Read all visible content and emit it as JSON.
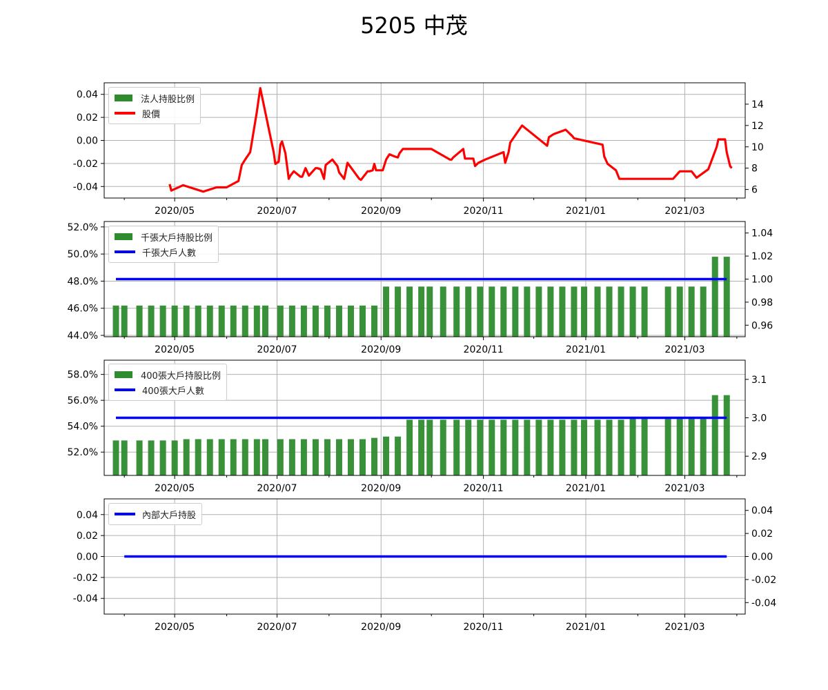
{
  "figure": {
    "title": "5205 中茂"
  },
  "colors": {
    "bar": "#2e8b2e",
    "price_line": "#ff0000",
    "holder_line": "#0000ff",
    "grid": "#b0b0b0"
  },
  "chart_data": [
    {
      "type": "bar",
      "panel": "institutional",
      "legend": [
        {
          "label": "法人持股比例",
          "kind": "bar"
        },
        {
          "label": "股價",
          "kind": "line"
        }
      ],
      "y_left": {
        "range": [
          -0.05,
          0.05
        ],
        "ticks": [
          "0.04",
          "0.02",
          "0.00",
          "-0.02",
          "-0.04"
        ]
      },
      "y_right": {
        "range": [
          5.2,
          16.0
        ],
        "ticks": [
          "14",
          "12",
          "10",
          "8",
          "6"
        ]
      },
      "x_ticks": [
        "2020/05",
        "2020/07",
        "2020/09",
        "2020/11",
        "2021/01",
        "2021/03"
      ],
      "bars": [],
      "price": {
        "dates": [
          "2020-04-28",
          "2020-04-29",
          "2020-05-06",
          "2020-05-18",
          "2020-05-26",
          "2020-06-01",
          "2020-06-08",
          "2020-06-10",
          "2020-06-12",
          "2020-06-15",
          "2020-06-19",
          "2020-06-20",
          "2020-06-21",
          "2020-06-29",
          "2020-06-30",
          "2020-07-02",
          "2020-07-03",
          "2020-07-04",
          "2020-07-06",
          "2020-07-08",
          "2020-07-09",
          "2020-07-11",
          "2020-07-15",
          "2020-07-16",
          "2020-07-18",
          "2020-07-20",
          "2020-07-24",
          "2020-07-25",
          "2020-07-27",
          "2020-07-29",
          "2020-07-30",
          "2020-08-03",
          "2020-08-06",
          "2020-08-07",
          "2020-08-10",
          "2020-08-12",
          "2020-08-19",
          "2020-08-20",
          "2020-08-24",
          "2020-08-25",
          "2020-08-27",
          "2020-08-28",
          "2020-08-29",
          "2020-08-31",
          "2020-09-02",
          "2020-09-04",
          "2020-09-06",
          "2020-09-09",
          "2020-09-11",
          "2020-09-12",
          "2020-09-14",
          "2020-09-16",
          "2020-09-19",
          "2020-09-22",
          "2020-09-25",
          "2020-10-01",
          "2020-10-12",
          "2020-10-13",
          "2020-10-14",
          "2020-10-20",
          "2020-10-21",
          "2020-10-22",
          "2020-10-26",
          "2020-10-27",
          "2020-10-29",
          "2020-11-02",
          "2020-11-13",
          "2020-11-14",
          "2020-11-16",
          "2020-11-17",
          "2020-11-24",
          "2020-12-09",
          "2020-12-10",
          "2020-12-13",
          "2020-12-20",
          "2020-12-24",
          "2020-12-25",
          "2021-01-11",
          "2021-01-12",
          "2021-01-14",
          "2021-01-19",
          "2021-01-21",
          "2021-01-22",
          "2021-02-21",
          "2021-02-22",
          "2021-02-26",
          "2021-02-27",
          "2021-03-05",
          "2021-03-08",
          "2021-03-15",
          "2021-03-16",
          "2021-03-20",
          "2021-03-21",
          "2021-03-25",
          "2021-03-26",
          "2021-03-28",
          "2021-03-29"
        ],
        "values": [
          6.5,
          5.9,
          6.4,
          5.8,
          6.2,
          6.2,
          6.8,
          8.3,
          8.8,
          9.5,
          13.3,
          14.4,
          15.5,
          9.5,
          8.4,
          8.6,
          10.2,
          10.5,
          9.4,
          7.0,
          7.3,
          7.7,
          7.2,
          7.2,
          8.0,
          7.3,
          8.0,
          8.0,
          7.9,
          7.0,
          8.3,
          8.8,
          8.2,
          7.6,
          7.0,
          8.5,
          7.0,
          6.9,
          7.7,
          7.7,
          7.8,
          8.4,
          7.8,
          7.8,
          7.8,
          8.8,
          9.3,
          9.1,
          9.0,
          9.4,
          9.8,
          9.8,
          9.8,
          9.8,
          9.8,
          9.8,
          8.8,
          8.8,
          9.0,
          9.8,
          8.9,
          8.9,
          8.9,
          8.2,
          8.5,
          8.8,
          9.5,
          8.5,
          9.5,
          10.4,
          12.0,
          10.1,
          10.9,
          11.2,
          11.6,
          11.0,
          10.8,
          10.2,
          9.1,
          8.4,
          7.8,
          7.0,
          7.0,
          7.0,
          7.0,
          7.7,
          7.7,
          7.7,
          7.1,
          7.9,
          8.3,
          10.0,
          10.7,
          10.7,
          9.5,
          8.2,
          8.0
        ]
      }
    },
    {
      "type": "bar",
      "panel": "1000-lot holders",
      "legend": [
        {
          "label": "千張大戶持股比例",
          "kind": "bar"
        },
        {
          "label": "千張大戶人數",
          "kind": "line"
        }
      ],
      "y_left": {
        "range": [
          43.9,
          52.4
        ],
        "ticks": [
          "52.0%",
          "50.0%",
          "48.0%",
          "46.0%",
          "44.0%"
        ]
      },
      "y_right": {
        "range": [
          0.95,
          1.05
        ],
        "ticks": [
          "1.04",
          "1.02",
          "1.00",
          "0.98",
          "0.96"
        ]
      },
      "x_ticks": [
        "2020/05",
        "2020/07",
        "2020/09",
        "2020/11",
        "2021/01",
        "2021/03"
      ],
      "bars": {
        "dates": [
          "2020-03-27",
          "2020-04-01",
          "2020-04-10",
          "2020-04-17",
          "2020-04-24",
          "2020-05-01",
          "2020-05-08",
          "2020-05-15",
          "2020-05-22",
          "2020-05-29",
          "2020-06-05",
          "2020-06-12",
          "2020-06-19",
          "2020-06-24",
          "2020-07-03",
          "2020-07-10",
          "2020-07-17",
          "2020-07-24",
          "2020-07-31",
          "2020-08-07",
          "2020-08-14",
          "2020-08-21",
          "2020-08-28",
          "2020-09-04",
          "2020-09-11",
          "2020-09-18",
          "2020-09-25",
          "2020-09-30",
          "2020-10-08",
          "2020-10-16",
          "2020-10-23",
          "2020-10-30",
          "2020-11-06",
          "2020-11-13",
          "2020-11-20",
          "2020-11-27",
          "2020-12-04",
          "2020-12-11",
          "2020-12-18",
          "2020-12-25",
          "2020-12-31",
          "2021-01-08",
          "2021-01-15",
          "2021-01-22",
          "2021-01-29",
          "2021-02-05",
          "2021-02-19",
          "2021-02-26",
          "2021-03-05",
          "2021-03-12",
          "2021-03-19",
          "2021-03-26"
        ],
        "values": [
          46.2,
          46.2,
          46.2,
          46.2,
          46.2,
          46.2,
          46.2,
          46.2,
          46.2,
          46.2,
          46.2,
          46.2,
          46.2,
          46.2,
          46.2,
          46.2,
          46.2,
          46.2,
          46.2,
          46.2,
          46.2,
          46.2,
          46.2,
          47.6,
          47.6,
          47.6,
          47.6,
          47.6,
          47.6,
          47.6,
          47.6,
          47.6,
          47.6,
          47.6,
          47.6,
          47.6,
          47.6,
          47.6,
          47.6,
          47.6,
          47.6,
          47.6,
          47.6,
          47.6,
          47.6,
          47.6,
          47.6,
          47.6,
          47.6,
          47.6,
          49.8,
          49.8
        ]
      },
      "line": {
        "dates": [
          "2020-03-27",
          "2021-03-26"
        ],
        "values": [
          1.0,
          1.0
        ]
      }
    },
    {
      "type": "bar",
      "panel": "400-lot holders",
      "legend": [
        {
          "label": "400張大戶持股比例",
          "kind": "bar"
        },
        {
          "label": "400張大戶人數",
          "kind": "line"
        }
      ],
      "y_left": {
        "range": [
          50.2,
          59.1
        ],
        "ticks": [
          "58.0%",
          "56.0%",
          "54.0%",
          "52.0%"
        ]
      },
      "y_right": {
        "range": [
          2.85,
          3.15
        ],
        "ticks": [
          "3.1",
          "3.0",
          "2.9"
        ]
      },
      "x_ticks": [
        "2020/05",
        "2020/07",
        "2020/09",
        "2020/11",
        "2021/01",
        "2021/03"
      ],
      "bars": {
        "dates": [
          "2020-03-27",
          "2020-04-01",
          "2020-04-10",
          "2020-04-17",
          "2020-04-24",
          "2020-05-01",
          "2020-05-08",
          "2020-05-15",
          "2020-05-22",
          "2020-05-29",
          "2020-06-05",
          "2020-06-12",
          "2020-06-19",
          "2020-06-24",
          "2020-07-03",
          "2020-07-10",
          "2020-07-17",
          "2020-07-24",
          "2020-07-31",
          "2020-08-07",
          "2020-08-14",
          "2020-08-21",
          "2020-08-28",
          "2020-09-04",
          "2020-09-11",
          "2020-09-18",
          "2020-09-25",
          "2020-09-30",
          "2020-10-08",
          "2020-10-16",
          "2020-10-23",
          "2020-10-30",
          "2020-11-06",
          "2020-11-13",
          "2020-11-20",
          "2020-11-27",
          "2020-12-04",
          "2020-12-11",
          "2020-12-18",
          "2020-12-25",
          "2020-12-31",
          "2021-01-08",
          "2021-01-15",
          "2021-01-22",
          "2021-01-29",
          "2021-02-05",
          "2021-02-19",
          "2021-02-26",
          "2021-03-05",
          "2021-03-12",
          "2021-03-19",
          "2021-03-26"
        ],
        "values": [
          52.9,
          52.9,
          52.9,
          52.9,
          52.9,
          52.9,
          53.0,
          53.0,
          53.0,
          53.0,
          53.0,
          53.0,
          53.0,
          53.0,
          53.0,
          53.0,
          53.0,
          53.0,
          53.0,
          53.0,
          53.0,
          53.0,
          53.1,
          53.2,
          53.2,
          54.5,
          54.5,
          54.5,
          54.5,
          54.5,
          54.5,
          54.5,
          54.5,
          54.5,
          54.5,
          54.5,
          54.5,
          54.5,
          54.5,
          54.5,
          54.5,
          54.5,
          54.5,
          54.5,
          54.6,
          54.6,
          54.6,
          54.6,
          54.6,
          54.6,
          56.4,
          56.4
        ]
      },
      "line": {
        "dates": [
          "2020-03-27",
          "2021-03-26"
        ],
        "values": [
          3.0,
          3.0
        ]
      }
    },
    {
      "type": "line",
      "panel": "insiders",
      "legend": [
        {
          "label": "內部大戶持股",
          "kind": "line"
        }
      ],
      "y_left": {
        "range": [
          -0.055,
          0.055
        ],
        "ticks": [
          "0.04",
          "0.02",
          "0.00",
          "-0.02",
          "-0.04"
        ]
      },
      "y_right": {
        "range": [
          -0.05,
          0.05
        ],
        "ticks": [
          "0.04",
          "0.02",
          "0.00",
          "-0.02",
          "-0.04"
        ]
      },
      "x_ticks": [
        "2020/05",
        "2020/07",
        "2020/09",
        "2020/11",
        "2021/01",
        "2021/03"
      ],
      "bars": [],
      "line": {
        "dates": [
          "2020-04-01",
          "2021-03-26"
        ],
        "values": [
          0.0,
          0.0
        ]
      }
    }
  ]
}
